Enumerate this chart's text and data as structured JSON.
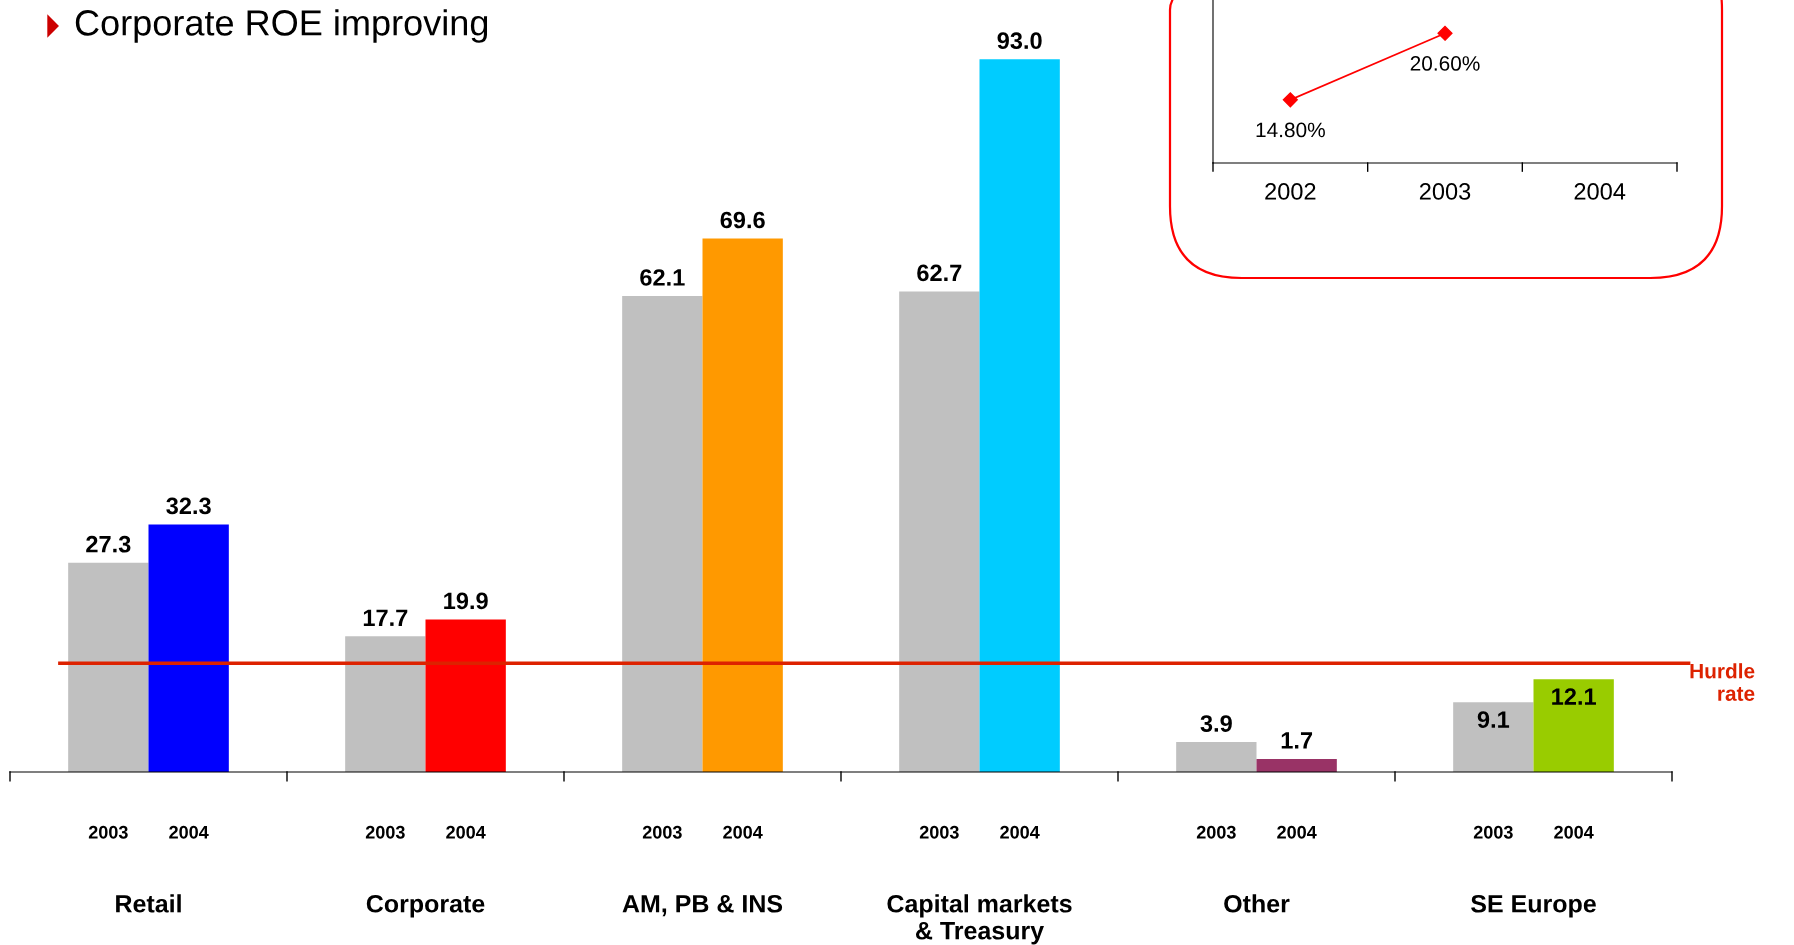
{
  "chart_data": [
    {
      "type": "bar",
      "title": "Corporate ROE improving",
      "categories": [
        "Retail",
        "Corporate",
        "AM, PB & INS",
        "Capital markets\n& Treasury",
        "Other",
        "SE Europe"
      ],
      "series": [
        {
          "name": "2003",
          "color": "#c0c0c0",
          "values": [
            27.3,
            17.7,
            62.1,
            62.7,
            3.9,
            9.1
          ]
        },
        {
          "name": "2004",
          "colors": [
            "#0000ff",
            "#ff0000",
            "#ff9900",
            "#00ccff",
            "#993366",
            "#99cc00"
          ],
          "values": [
            32.3,
            19.9,
            69.6,
            93.0,
            1.7,
            12.1
          ],
          "value_labels": [
            "32.3",
            "19.9",
            "69.6",
            "93.0",
            "1.7",
            "12.1"
          ]
        }
      ],
      "data_labels": true,
      "ref_lines": [
        {
          "axis": "y",
          "value": 14.2,
          "label": "Hurdle rate",
          "color": "#dd2200"
        }
      ],
      "grid": false
    },
    {
      "type": "line",
      "categories": [
        "2002",
        "2003",
        "2004"
      ],
      "series": [
        {
          "color": "#ff0000",
          "values": [
            14.8,
            20.6,
            null
          ],
          "value_labels": [
            "14.80%",
            "20.60%",
            null
          ]
        }
      ],
      "marker": "diamond",
      "line_style": "solid",
      "grid": false
    }
  ]
}
